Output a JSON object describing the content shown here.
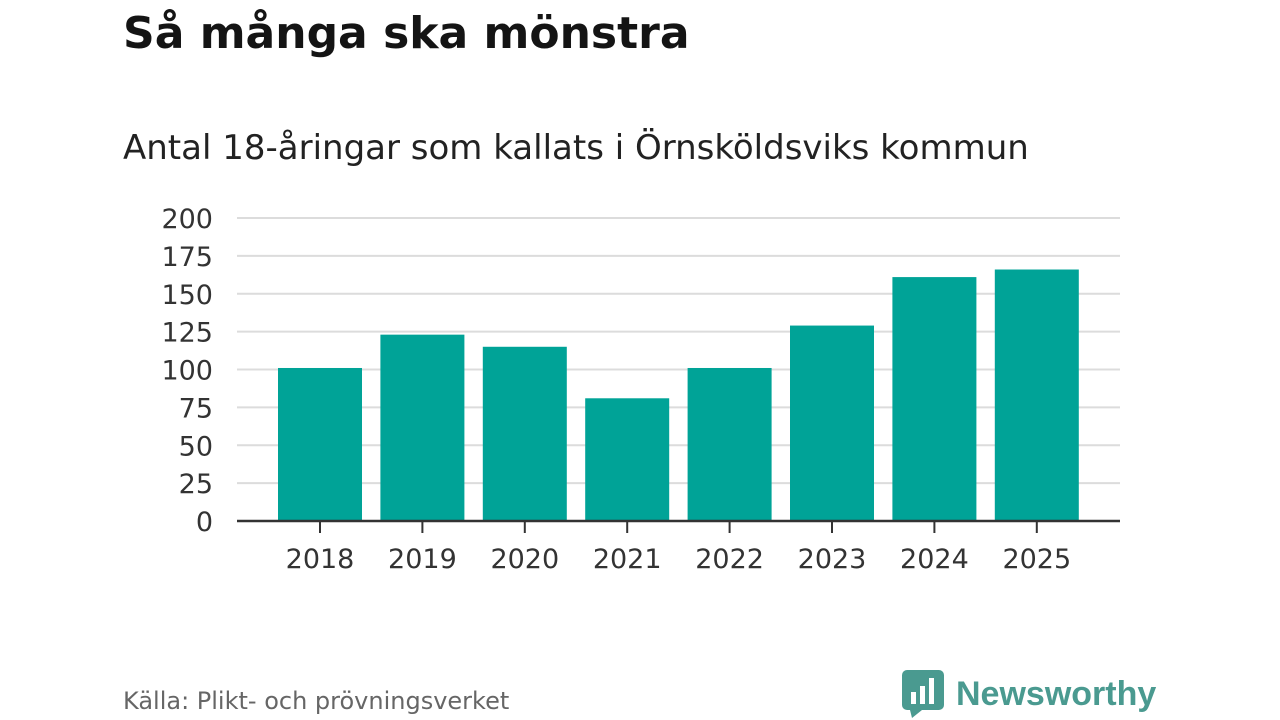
{
  "header": {
    "title": "Så många ska mönstra",
    "subtitle": "Antal 18-åringar som kallats i Örnsköldsviks kommun"
  },
  "footer": {
    "source": "Källa: Plikt- och prövningsverket",
    "brand": "Newsworthy"
  },
  "colors": {
    "bar": "#00a397",
    "grid": "#dcdcdc",
    "axis": "#333333",
    "brand": "#4a9a90"
  },
  "icons": {
    "brand_logo": "newsworthy-logo-icon"
  },
  "chart_data": {
    "type": "bar",
    "title": "Så många ska mönstra",
    "subtitle": "Antal 18-åringar som kallats i Örnsköldsviks kommun",
    "categories": [
      "2018",
      "2019",
      "2020",
      "2021",
      "2022",
      "2023",
      "2024",
      "2025"
    ],
    "values": [
      101,
      123,
      115,
      81,
      101,
      129,
      161,
      166
    ],
    "ylim": [
      0,
      200
    ],
    "yticks": [
      0,
      25,
      50,
      75,
      100,
      125,
      150,
      175,
      200
    ],
    "grid": true,
    "legend": "none"
  }
}
